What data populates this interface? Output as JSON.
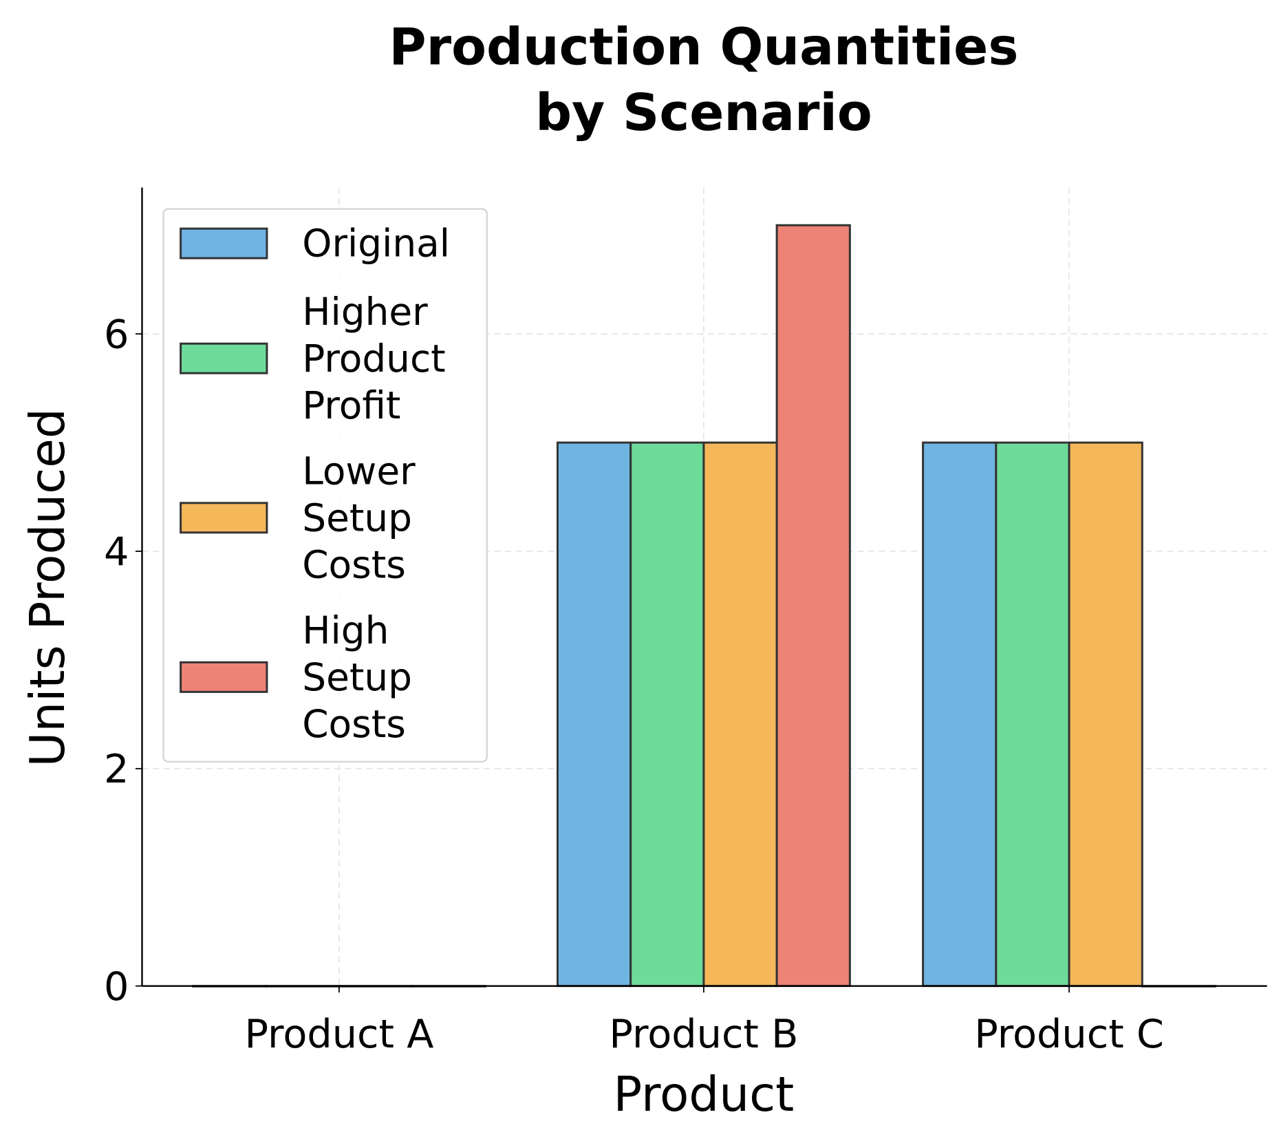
{
  "chart_data": {
    "type": "bar",
    "title": "Production Quantities by Scenario",
    "title_lines": [
      "Production Quantities",
      "by Scenario"
    ],
    "xlabel": "Product",
    "ylabel": "Units Produced",
    "categories": [
      "Product A",
      "Product B",
      "Product C"
    ],
    "ylim": [
      0,
      7.35
    ],
    "yticks": [
      0,
      2,
      4,
      6
    ],
    "grid": true,
    "legend_position": "top-left",
    "series": [
      {
        "name": "Original",
        "legend_lines": [
          "Original"
        ],
        "color": "#6fb5e3",
        "values": [
          0,
          5,
          5
        ]
      },
      {
        "name": "Higher Product Profit",
        "legend_lines": [
          "Higher",
          "Product",
          "Profit"
        ],
        "color": "#6edb9a",
        "values": [
          0,
          5,
          5
        ]
      },
      {
        "name": "Lower Setup Costs",
        "legend_lines": [
          "Lower",
          "Setup",
          "Costs"
        ],
        "color": "#f4b85a",
        "values": [
          0,
          5,
          5
        ]
      },
      {
        "name": "High Setup Costs",
        "legend_lines": [
          "High",
          "Setup",
          "Costs"
        ],
        "color": "#ed8377",
        "values": [
          0,
          7,
          0
        ]
      }
    ]
  }
}
